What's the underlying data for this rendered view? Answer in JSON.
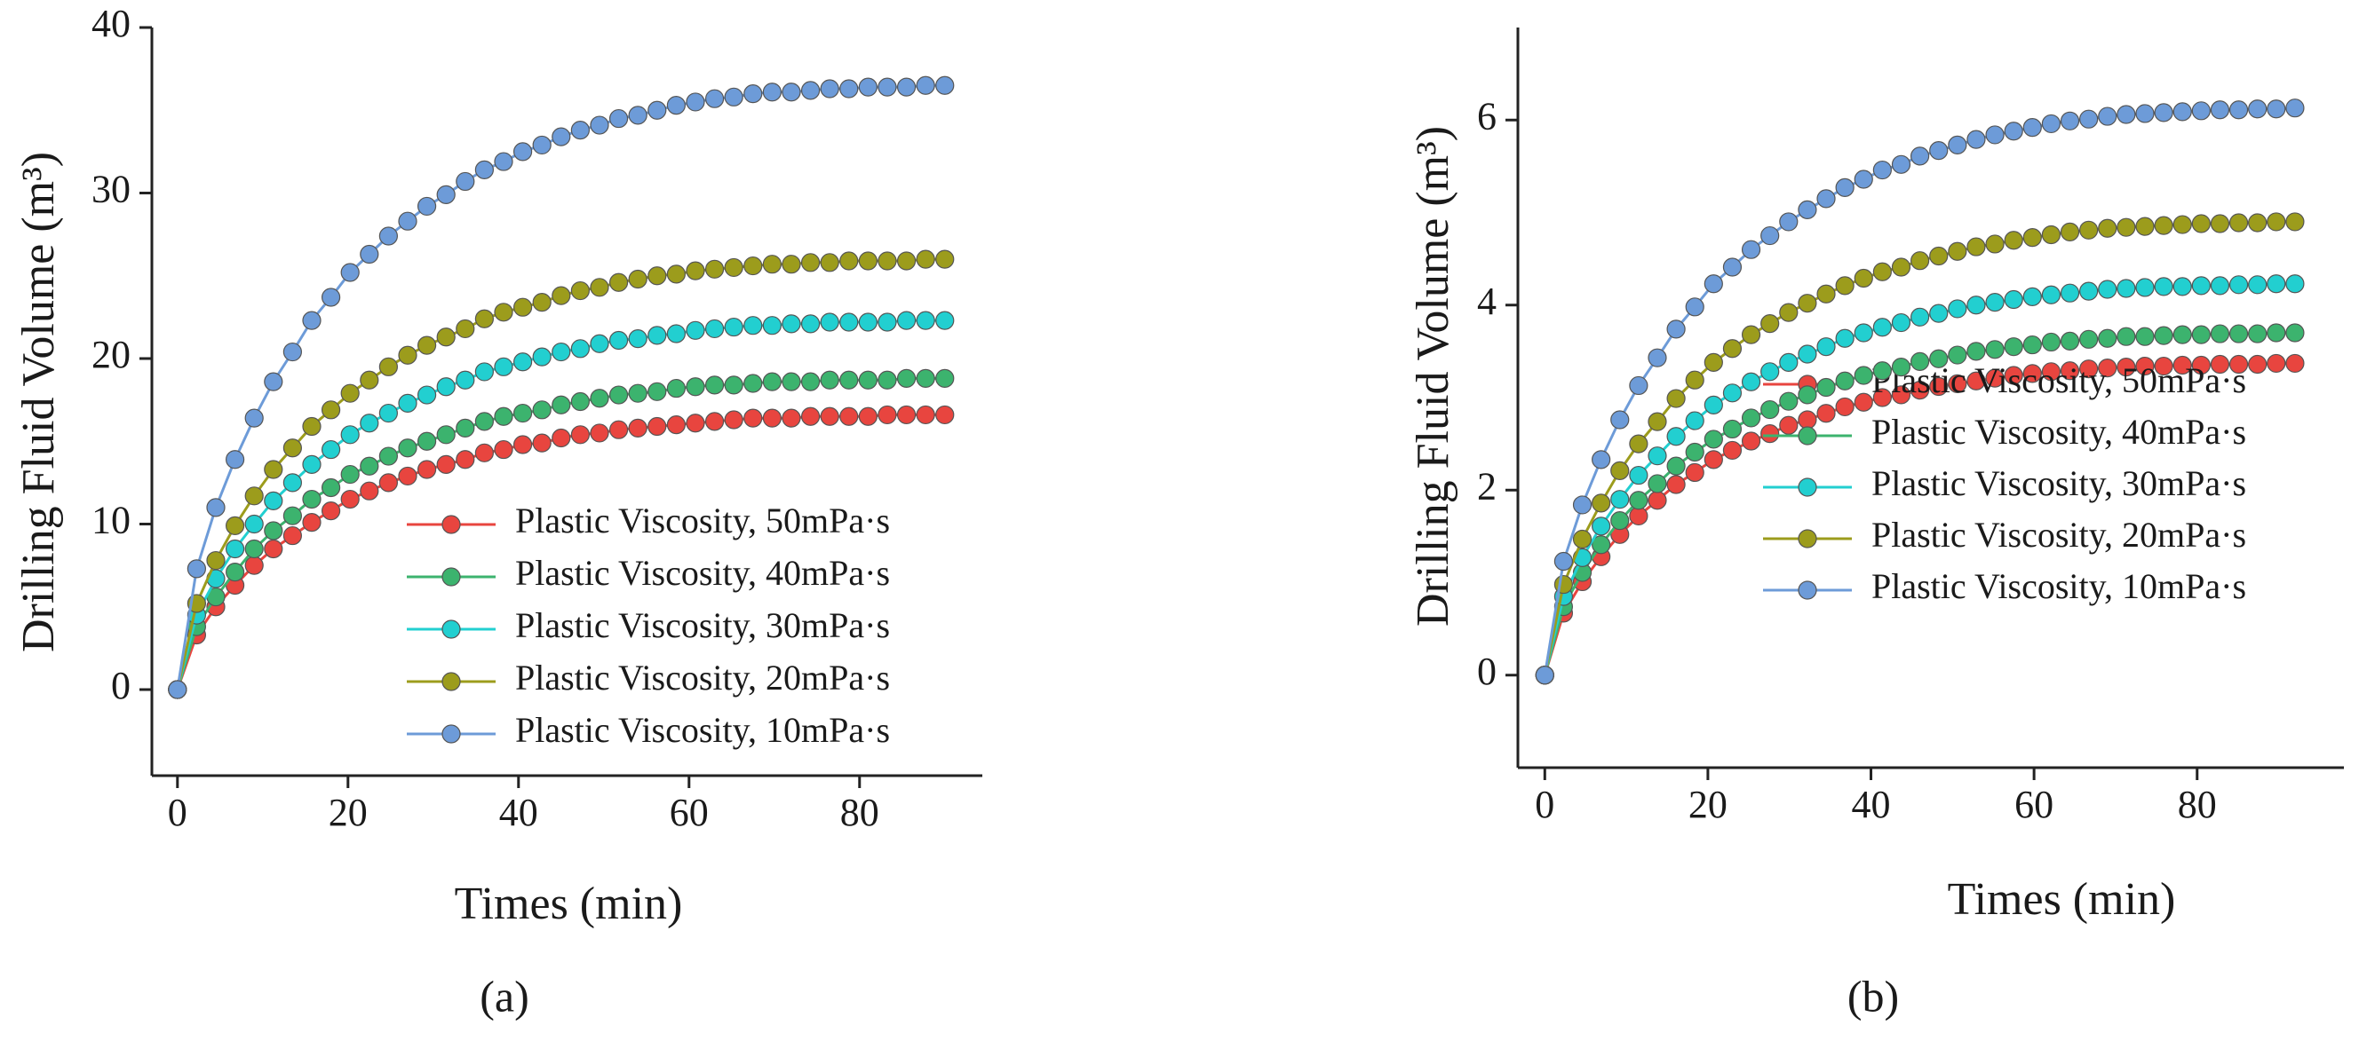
{
  "chart_data": [
    {
      "type": "line",
      "markers": true,
      "xlabel": "Times (min)",
      "ylabel": "Drilling Fluid Volume (m³)",
      "caption": "(a)",
      "xlim": [
        -3,
        94.4
      ],
      "ylim": [
        -5.2,
        40
      ],
      "xticks": [
        0,
        20,
        40,
        60,
        80
      ],
      "yticks": [
        0,
        10,
        20,
        30,
        40
      ],
      "x": [
        0,
        2.25,
        4.5,
        6.75,
        9,
        11.25,
        13.5,
        15.75,
        18,
        20.25,
        22.5,
        24.75,
        27,
        29.25,
        31.5,
        33.75,
        36,
        38.25,
        40.5,
        42.75,
        45,
        47.25,
        49.5,
        51.75,
        54,
        56.25,
        58.5,
        60.75,
        63,
        65.25,
        67.5,
        69.75,
        72,
        74.25,
        76.5,
        78.75,
        81,
        83.25,
        85.5,
        87.75,
        90
      ],
      "series": [
        {
          "name": "Plastic Viscosity, 50mPa·s",
          "color": "#e8453f",
          "values": [
            0,
            3.3,
            5.0,
            6.3,
            7.5,
            8.5,
            9.3,
            10.1,
            10.8,
            11.5,
            12.0,
            12.5,
            12.9,
            13.3,
            13.6,
            13.9,
            14.3,
            14.5,
            14.8,
            14.9,
            15.2,
            15.4,
            15.5,
            15.7,
            15.8,
            15.9,
            16.0,
            16.1,
            16.2,
            16.3,
            16.4,
            16.4,
            16.4,
            16.5,
            16.5,
            16.5,
            16.5,
            16.6,
            16.6,
            16.6,
            16.6
          ]
        },
        {
          "name": "Plastic Viscosity, 40mPa·s",
          "color": "#3cb36e",
          "values": [
            0,
            3.8,
            5.6,
            7.1,
            8.5,
            9.6,
            10.5,
            11.5,
            12.2,
            13.0,
            13.5,
            14.1,
            14.6,
            15.0,
            15.4,
            15.8,
            16.2,
            16.5,
            16.7,
            16.9,
            17.2,
            17.4,
            17.6,
            17.8,
            17.9,
            18.0,
            18.2,
            18.3,
            18.4,
            18.4,
            18.5,
            18.6,
            18.6,
            18.6,
            18.7,
            18.7,
            18.7,
            18.7,
            18.8,
            18.8,
            18.8
          ]
        },
        {
          "name": "Plastic Viscosity, 30mPa·s",
          "color": "#22cfd0",
          "values": [
            0,
            4.5,
            6.7,
            8.5,
            10.0,
            11.4,
            12.5,
            13.6,
            14.5,
            15.4,
            16.1,
            16.7,
            17.3,
            17.8,
            18.3,
            18.7,
            19.2,
            19.5,
            19.8,
            20.1,
            20.4,
            20.6,
            20.9,
            21.1,
            21.2,
            21.4,
            21.5,
            21.7,
            21.8,
            21.9,
            22.0,
            22.0,
            22.1,
            22.1,
            22.2,
            22.2,
            22.2,
            22.2,
            22.3,
            22.3,
            22.3
          ]
        },
        {
          "name": "Plastic Viscosity, 20mPa·s",
          "color": "#9c9c1c",
          "values": [
            0,
            5.2,
            7.8,
            9.9,
            11.7,
            13.3,
            14.6,
            15.9,
            16.9,
            17.9,
            18.7,
            19.5,
            20.2,
            20.8,
            21.3,
            21.8,
            22.4,
            22.8,
            23.1,
            23.4,
            23.8,
            24.1,
            24.3,
            24.6,
            24.8,
            25.0,
            25.1,
            25.3,
            25.4,
            25.5,
            25.6,
            25.7,
            25.7,
            25.8,
            25.8,
            25.9,
            25.9,
            25.9,
            25.9,
            26.0,
            26.0
          ]
        },
        {
          "name": "Plastic Viscosity, 10mPa·s",
          "color": "#6d9bd8",
          "values": [
            0,
            7.3,
            11.0,
            13.9,
            16.4,
            18.6,
            20.4,
            22.3,
            23.7,
            25.2,
            26.3,
            27.4,
            28.3,
            29.2,
            29.9,
            30.7,
            31.4,
            31.9,
            32.5,
            32.9,
            33.4,
            33.8,
            34.1,
            34.5,
            34.7,
            35.0,
            35.3,
            35.5,
            35.7,
            35.8,
            36.0,
            36.1,
            36.1,
            36.2,
            36.3,
            36.3,
            36.4,
            36.4,
            36.4,
            36.5,
            36.5
          ]
        }
      ]
    },
    {
      "type": "line",
      "markers": true,
      "xlabel": "Times (min)",
      "ylabel": "Drilling Fluid Volume (m³)",
      "caption": "(b)",
      "xlim": [
        -3.3,
        98
      ],
      "ylim": [
        -1,
        7
      ],
      "xticks": [
        0,
        20,
        40,
        60,
        80
      ],
      "yticks": [
        0,
        2,
        4,
        6
      ],
      "x": [
        0,
        2.3,
        4.6,
        6.9,
        9.2,
        11.5,
        13.8,
        16.1,
        18.4,
        20.7,
        23,
        25.3,
        27.6,
        29.9,
        32.2,
        34.5,
        36.8,
        39.1,
        41.4,
        43.7,
        46,
        48.3,
        50.6,
        52.9,
        55.2,
        57.5,
        59.8,
        62.1,
        64.4,
        66.7,
        69,
        71.3,
        73.6,
        75.9,
        78.2,
        80.5,
        82.8,
        85.1,
        87.4,
        89.7,
        92
      ],
      "series": [
        {
          "name": "Plastic Viscosity, 50mPa·s",
          "color": "#e8453f",
          "values": [
            0,
            0.67,
            1.01,
            1.28,
            1.52,
            1.72,
            1.89,
            2.06,
            2.19,
            2.33,
            2.43,
            2.53,
            2.61,
            2.7,
            2.76,
            2.83,
            2.9,
            2.95,
            3.0,
            3.03,
            3.08,
            3.12,
            3.15,
            3.18,
            3.21,
            3.24,
            3.26,
            3.28,
            3.29,
            3.31,
            3.32,
            3.33,
            3.34,
            3.34,
            3.35,
            3.35,
            3.36,
            3.36,
            3.36,
            3.37,
            3.37
          ]
        },
        {
          "name": "Plastic Viscosity, 40mPa·s",
          "color": "#3cb36e",
          "values": [
            0,
            0.74,
            1.11,
            1.41,
            1.67,
            1.89,
            2.07,
            2.26,
            2.41,
            2.55,
            2.66,
            2.78,
            2.87,
            2.96,
            3.03,
            3.11,
            3.18,
            3.24,
            3.29,
            3.33,
            3.39,
            3.42,
            3.46,
            3.5,
            3.52,
            3.55,
            3.57,
            3.6,
            3.61,
            3.63,
            3.64,
            3.66,
            3.66,
            3.67,
            3.68,
            3.68,
            3.69,
            3.69,
            3.69,
            3.7,
            3.7
          ]
        },
        {
          "name": "Plastic Viscosity, 30mPa·s",
          "color": "#22cfd0",
          "values": [
            0,
            0.85,
            1.27,
            1.61,
            1.9,
            2.16,
            2.37,
            2.58,
            2.75,
            2.92,
            3.05,
            3.17,
            3.28,
            3.38,
            3.47,
            3.55,
            3.64,
            3.7,
            3.76,
            3.81,
            3.87,
            3.91,
            3.96,
            4.0,
            4.03,
            4.06,
            4.09,
            4.11,
            4.13,
            4.15,
            4.17,
            4.18,
            4.19,
            4.2,
            4.2,
            4.21,
            4.21,
            4.22,
            4.22,
            4.23,
            4.23
          ]
        },
        {
          "name": "Plastic Viscosity, 20mPa·s",
          "color": "#9c9c1c",
          "values": [
            0,
            0.98,
            1.47,
            1.86,
            2.21,
            2.5,
            2.74,
            2.99,
            3.19,
            3.38,
            3.53,
            3.68,
            3.8,
            3.92,
            4.02,
            4.12,
            4.21,
            4.29,
            4.36,
            4.41,
            4.48,
            4.53,
            4.58,
            4.63,
            4.66,
            4.7,
            4.73,
            4.76,
            4.79,
            4.81,
            4.83,
            4.84,
            4.85,
            4.86,
            4.87,
            4.88,
            4.88,
            4.89,
            4.89,
            4.9,
            4.9
          ]
        },
        {
          "name": "Plastic Viscosity, 10mPa·s",
          "color": "#6d9bd8",
          "values": [
            0,
            1.23,
            1.84,
            2.33,
            2.76,
            3.13,
            3.43,
            3.74,
            3.98,
            4.23,
            4.41,
            4.6,
            4.75,
            4.9,
            5.03,
            5.15,
            5.27,
            5.36,
            5.46,
            5.52,
            5.61,
            5.67,
            5.73,
            5.79,
            5.84,
            5.88,
            5.92,
            5.96,
            5.99,
            6.01,
            6.04,
            6.06,
            6.07,
            6.08,
            6.09,
            6.1,
            6.11,
            6.11,
            6.12,
            6.12,
            6.13
          ]
        }
      ]
    }
  ]
}
